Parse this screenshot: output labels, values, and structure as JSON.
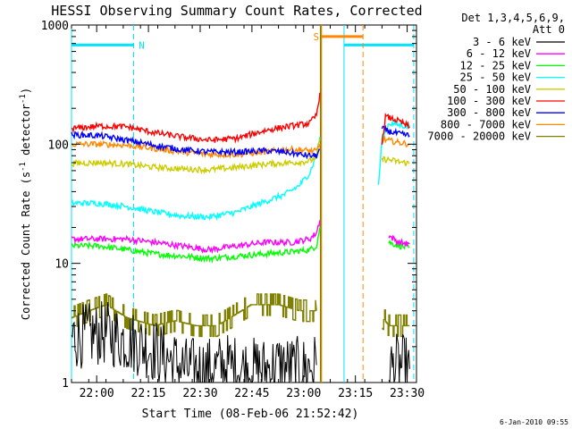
{
  "chart_data": {
    "type": "line",
    "title": "HESSI Observing Summary Count Rates, Corrected",
    "xlabel": "Start Time (08-Feb-06 21:52:42)",
    "ylabel": "Corrected Count Rate (s⁻¹ detector⁻¹)",
    "ylabel_parts": {
      "main": "Corrected Count Rate (s",
      "sup1": "-1",
      "mid": " detector",
      "sup2": "-1",
      "end": ")"
    },
    "x_unit": "minutes after 21:52:42",
    "xlim": [
      0,
      100
    ],
    "ylim": [
      1,
      1000
    ],
    "y_scale": "log",
    "x_ticks": [
      {
        "x": 7.3,
        "label": "22:00"
      },
      {
        "x": 22.3,
        "label": "22:15"
      },
      {
        "x": 37.3,
        "label": "22:30"
      },
      {
        "x": 52.3,
        "label": "22:45"
      },
      {
        "x": 67.3,
        "label": "23:00"
      },
      {
        "x": 82.3,
        "label": "23:15"
      },
      {
        "x": 97.3,
        "label": "23:30"
      }
    ],
    "y_ticks": [
      {
        "y": 1,
        "label": "1"
      },
      {
        "y": 10,
        "label": "10"
      },
      {
        "y": 100,
        "label": "100"
      },
      {
        "y": 1000,
        "label": "1000"
      }
    ],
    "legend_position": "right",
    "legend_header": [
      "Det 1,3,4,5,6,9,",
      "Att 0"
    ],
    "series": [
      {
        "name": "3 - 6 keV",
        "color": "#000000",
        "style": "noisy",
        "segments": [
          [
            [
              0,
              2.4
            ],
            [
              10,
              2.6
            ],
            [
              15,
              2.3
            ],
            [
              22,
              2
            ],
            [
              28,
              1.6
            ],
            [
              33,
              1.3
            ],
            [
              40,
              1.3
            ],
            [
              45,
              1.4
            ],
            [
              50,
              1.3
            ],
            [
              56,
              1.3
            ],
            [
              60,
              1.4
            ],
            [
              66,
              1.3
            ],
            [
              71,
              1.4
            ]
          ],
          [
            [
              92,
              1.3
            ],
            [
              95,
              1.4
            ],
            [
              98,
              1.3
            ]
          ]
        ]
      },
      {
        "name": "6 - 12 keV",
        "color": "#ff00ff",
        "segments": [
          [
            [
              0,
              16
            ],
            [
              8,
              16
            ],
            [
              16,
              16
            ],
            [
              24,
              15
            ],
            [
              32,
              14
            ],
            [
              40,
              13
            ],
            [
              48,
              14
            ],
            [
              56,
              15
            ],
            [
              64,
              15
            ],
            [
              69,
              16
            ],
            [
              71,
              18
            ],
            [
              72,
              23
            ]
          ],
          [
            [
              92,
              17
            ],
            [
              95,
              15
            ],
            [
              98,
              14.5
            ]
          ]
        ]
      },
      {
        "name": "12 - 25 keV",
        "color": "#00ff00",
        "segments": [
          [
            [
              0,
              14
            ],
            [
              8,
              14
            ],
            [
              16,
              13
            ],
            [
              24,
              12
            ],
            [
              32,
              11.5
            ],
            [
              40,
              11
            ],
            [
              48,
              11.5
            ],
            [
              56,
              12
            ],
            [
              64,
              12.5
            ],
            [
              69,
              13
            ],
            [
              71,
              14
            ],
            [
              72,
              20
            ]
          ],
          [
            [
              92,
              15
            ],
            [
              95,
              14
            ],
            [
              98,
              13.5
            ]
          ]
        ]
      },
      {
        "name": "25 - 50 keV",
        "color": "#00ffff",
        "segments": [
          [
            [
              0,
              32
            ],
            [
              8,
              32
            ],
            [
              16,
              30
            ],
            [
              24,
              27
            ],
            [
              32,
              25
            ],
            [
              40,
              24.5
            ],
            [
              48,
              27
            ],
            [
              56,
              33
            ],
            [
              62,
              38
            ],
            [
              66,
              45
            ],
            [
              69,
              57
            ],
            [
              71,
              80
            ],
            [
              72,
              115
            ]
          ],
          [
            [
              89,
              45
            ],
            [
              90,
              110
            ],
            [
              92,
              150
            ],
            [
              95,
              145
            ],
            [
              98,
              140
            ]
          ]
        ]
      },
      {
        "name": "50 - 100 keV",
        "color": "#cccc00",
        "segments": [
          [
            [
              0,
              69
            ],
            [
              8,
              70
            ],
            [
              16,
              68
            ],
            [
              24,
              64
            ],
            [
              32,
              62
            ],
            [
              40,
              61
            ],
            [
              48,
              64
            ],
            [
              56,
              68
            ],
            [
              64,
              70
            ],
            [
              69,
              72
            ],
            [
              71,
              78
            ],
            [
              72,
              110
            ]
          ],
          [
            [
              90,
              75
            ],
            [
              92,
              74
            ],
            [
              95,
              71
            ],
            [
              98,
              69
            ]
          ]
        ]
      },
      {
        "name": "100 - 300 keV",
        "color": "#ff0000",
        "segments": [
          [
            [
              0,
              135
            ],
            [
              8,
              142
            ],
            [
              16,
              140
            ],
            [
              24,
              125
            ],
            [
              32,
              115
            ],
            [
              40,
              108
            ],
            [
              48,
              112
            ],
            [
              56,
              130
            ],
            [
              62,
              140
            ],
            [
              66,
              145
            ],
            [
              69,
              150
            ],
            [
              71,
              175
            ],
            [
              72,
              270
            ]
          ],
          [
            [
              90,
              100
            ],
            [
              91,
              170
            ],
            [
              94,
              160
            ],
            [
              96,
              150
            ],
            [
              98,
              140
            ]
          ]
        ]
      },
      {
        "name": "300 - 800 keV",
        "color": "#0000ff",
        "segments": [
          [
            [
              0,
              120
            ],
            [
              8,
              118
            ],
            [
              16,
              108
            ],
            [
              24,
              98
            ],
            [
              32,
              90
            ],
            [
              40,
              86
            ],
            [
              48,
              86
            ],
            [
              56,
              88
            ],
            [
              62,
              86
            ],
            [
              66,
              82
            ],
            [
              69,
              80
            ],
            [
              71,
              80
            ],
            [
              72,
              90
            ]
          ],
          [
            [
              90,
              135
            ],
            [
              92,
              128
            ],
            [
              95,
              122
            ],
            [
              98,
              118
            ]
          ]
        ]
      },
      {
        "name": "800 - 7000 keV",
        "color": "#ff8800",
        "segments": [
          [
            [
              0,
              100
            ],
            [
              8,
              100
            ],
            [
              16,
              98
            ],
            [
              24,
              92
            ],
            [
              32,
              86
            ],
            [
              40,
              82
            ],
            [
              48,
              82
            ],
            [
              56,
              86
            ],
            [
              62,
              90
            ],
            [
              66,
              90
            ],
            [
              69,
              88
            ],
            [
              71,
              87
            ],
            [
              72,
              100
            ]
          ],
          [
            [
              90,
              110
            ],
            [
              92,
              107
            ],
            [
              95,
              103
            ],
            [
              98,
              100
            ]
          ]
        ]
      },
      {
        "name": "7000 - 20000 keV",
        "color": "#808000",
        "style": "stair",
        "segments": [
          [
            [
              0,
              3.5
            ],
            [
              5,
              4
            ],
            [
              10,
              4.5
            ],
            [
              16,
              3.5
            ],
            [
              24,
              3
            ],
            [
              30,
              3.3
            ],
            [
              36,
              3
            ],
            [
              42,
              3
            ],
            [
              46,
              3.5
            ],
            [
              52,
              4.5
            ],
            [
              60,
              4.5
            ],
            [
              66,
              4
            ],
            [
              71,
              4
            ]
          ],
          [
            [
              90,
              3.5
            ],
            [
              92,
              3
            ],
            [
              95,
              3
            ],
            [
              98,
              3
            ]
          ]
        ]
      }
    ],
    "annotations": {
      "bands": [
        {
          "label": "N",
          "color": "#00e5ff",
          "y": 680,
          "x_start": 0.0,
          "x_end": 18.0,
          "start_line": "solid",
          "end_line": "dashed"
        },
        {
          "label": "N",
          "color": "#00e5ff",
          "y": 680,
          "x_start": 79.0,
          "x_end": 99.2,
          "start_line": "solid",
          "end_line": "dashed"
        },
        {
          "label": "S",
          "color": "#ff8800",
          "y": 800,
          "x_start": 72.5,
          "x_end": 84.5,
          "start_line": "solid",
          "end_line": "dashed"
        }
      ],
      "olive_lines": [
        72.2
      ]
    }
  },
  "footer": {
    "timestamp": "6-Jan-2010 09:55"
  }
}
